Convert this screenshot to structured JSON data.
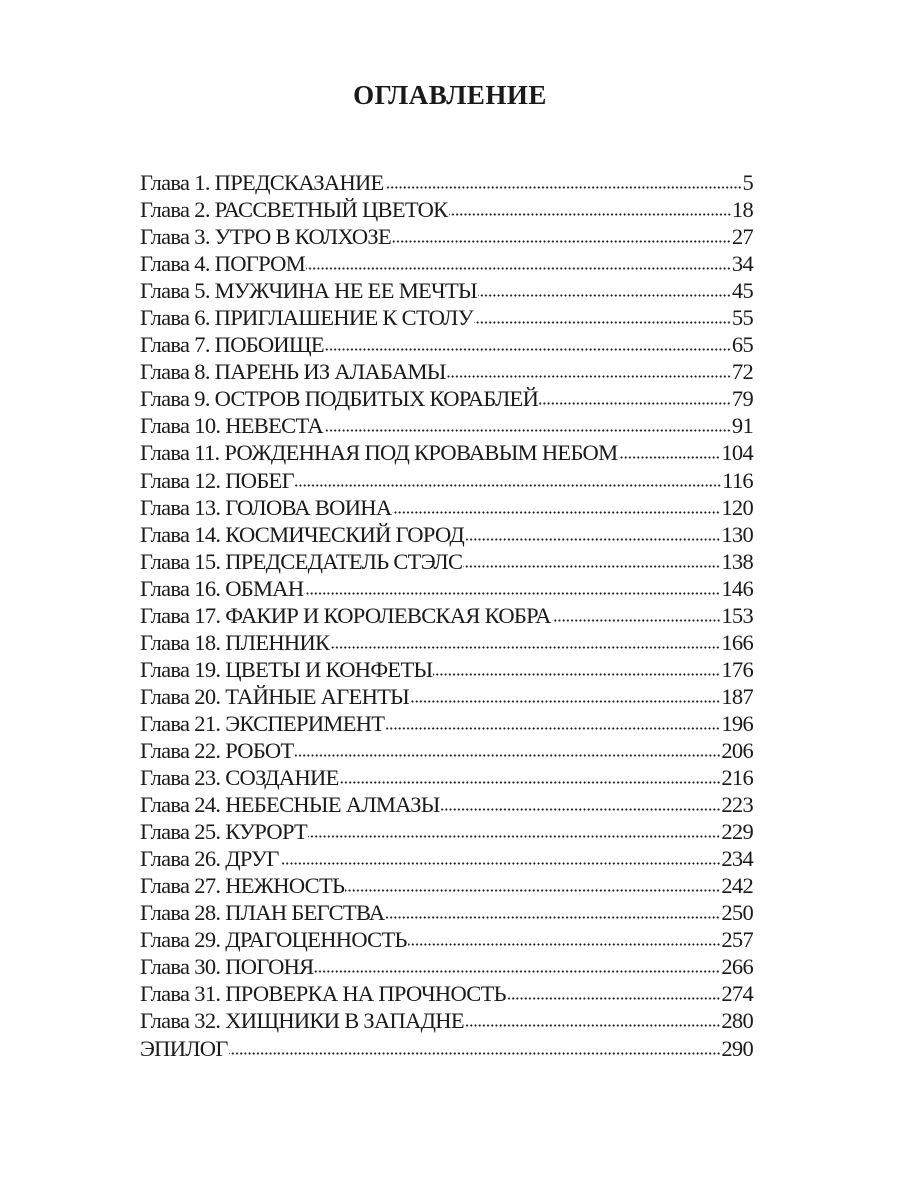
{
  "title": "ОГЛАВЛЕНИЕ",
  "entries": [
    {
      "label": "Глава 1. ПРЕДСКАЗАНИЕ",
      "page": "5"
    },
    {
      "label": "Глава 2. РАССВЕТНЫЙ ЦВЕТОК",
      "page": "18"
    },
    {
      "label": "Глава 3. УТРО В КОЛХОЗЕ",
      "page": "27"
    },
    {
      "label": "Глава 4. ПОГРОМ",
      "page": "34"
    },
    {
      "label": "Глава 5. МУЖЧИНА НЕ ЕЕ МЕЧТЫ",
      "page": "45"
    },
    {
      "label": "Глава 6. ПРИГЛАШЕНИЕ К СТОЛУ",
      "page": "55"
    },
    {
      "label": "Глава 7. ПОБОИЩЕ",
      "page": "65"
    },
    {
      "label": "Глава 8. ПАРЕНЬ ИЗ АЛАБАМЫ",
      "page": "72"
    },
    {
      "label": "Глава 9. ОСТРОВ ПОДБИТЫХ КОРАБЛЕЙ",
      "page": "79"
    },
    {
      "label": "Глава 10. НЕВЕСТА",
      "page": "91"
    },
    {
      "label": "Глава 11. РОЖДЕННАЯ ПОД КРОВАВЫМ НЕБОМ",
      "page": "104"
    },
    {
      "label": "Глава 12. ПОБЕГ",
      "page": "116"
    },
    {
      "label": "Глава 13. ГОЛОВА ВОИНА",
      "page": "120"
    },
    {
      "label": "Глава 14. КОСМИЧЕСКИЙ ГОРОД",
      "page": "130"
    },
    {
      "label": "Глава 15. ПРЕДСЕДАТЕЛЬ СТЭЛС",
      "page": "138"
    },
    {
      "label": "Глава 16. ОБМАН",
      "page": "146"
    },
    {
      "label": "Глава 17. ФАКИР И КОРОЛЕВСКАЯ КОБРА",
      "page": "153"
    },
    {
      "label": "Глава 18. ПЛЕННИК",
      "page": "166"
    },
    {
      "label": "Глава 19. ЦВЕТЫ И КОНФЕТЫ",
      "page": "176"
    },
    {
      "label": "Глава 20. ТАЙНЫЕ АГЕНТЫ",
      "page": "187"
    },
    {
      "label": "Глава 21. ЭКСПЕРИМЕНТ",
      "page": "196"
    },
    {
      "label": "Глава 22. РОБОТ",
      "page": "206"
    },
    {
      "label": "Глава 23. СОЗДАНИЕ",
      "page": "216"
    },
    {
      "label": "Глава 24. НЕБЕСНЫЕ АЛМАЗЫ",
      "page": "223"
    },
    {
      "label": "Глава 25. КУРОРТ",
      "page": "229"
    },
    {
      "label": "Глава 26. ДРУГ",
      "page": "234"
    },
    {
      "label": "Глава 27. НЕЖНОСТЬ",
      "page": "242"
    },
    {
      "label": "Глава 28. ПЛАН БЕГСТВА",
      "page": "250"
    },
    {
      "label": "Глава 29. ДРАГОЦЕННОСТЬ",
      "page": "257"
    },
    {
      "label": "Глава 30. ПОГОНЯ",
      "page": "266"
    },
    {
      "label": "Глава 31. ПРОВЕРКА НА ПРОЧНОСТЬ",
      "page": "274"
    },
    {
      "label": "Глава 32. ХИЩНИКИ В ЗАПАДНЕ",
      "page": "280"
    },
    {
      "label": "ЭПИЛОГ",
      "page": "290"
    }
  ]
}
